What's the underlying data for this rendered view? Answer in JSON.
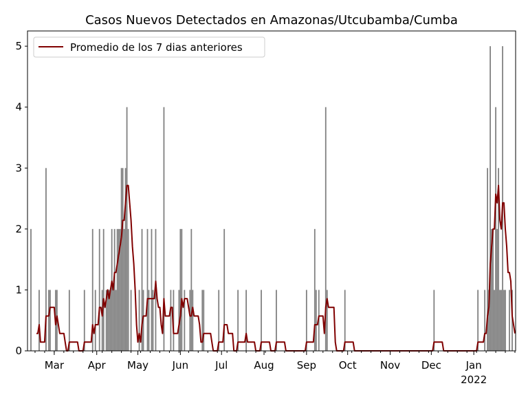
{
  "chart_data": {
    "type": "bar",
    "title": "Casos Nuevos Detectados en Amazonas/Utcubamba/Cumba",
    "xlabel": "",
    "ylabel": "",
    "ylim": [
      0,
      5.25
    ],
    "yticks": [
      "0",
      "1",
      "2",
      "3",
      "4",
      "5"
    ],
    "start_date": "2021-02-10",
    "num_days": 355,
    "x_unit": "days since start_date",
    "month_ticks": [
      {
        "day": 19,
        "label": "Mar"
      },
      {
        "day": 50,
        "label": "Apr"
      },
      {
        "day": 80,
        "label": "May"
      },
      {
        "day": 111,
        "label": "Jun"
      },
      {
        "day": 141,
        "label": "Jul"
      },
      {
        "day": 172,
        "label": "Aug"
      },
      {
        "day": 203,
        "label": "Sep"
      },
      {
        "day": 233,
        "label": "Oct"
      },
      {
        "day": 264,
        "label": "Nov"
      },
      {
        "day": 294,
        "label": "Dec"
      },
      {
        "day": 325,
        "label": "Jan",
        "sublabel": "2022"
      }
    ],
    "daily_cases": [
      [
        2,
        2
      ],
      [
        8,
        1
      ],
      [
        13,
        3
      ],
      [
        15,
        1
      ],
      [
        16,
        1
      ],
      [
        20,
        1
      ],
      [
        21,
        1
      ],
      [
        30,
        1
      ],
      [
        41,
        1
      ],
      [
        47,
        2
      ],
      [
        49,
        1
      ],
      [
        52,
        2
      ],
      [
        54,
        1
      ],
      [
        55,
        2
      ],
      [
        57,
        1
      ],
      [
        58,
        1
      ],
      [
        59,
        1
      ],
      [
        60,
        1
      ],
      [
        61,
        2
      ],
      [
        62,
        1
      ],
      [
        63,
        2
      ],
      [
        64,
        1
      ],
      [
        65,
        2
      ],
      [
        66,
        2
      ],
      [
        67,
        2
      ],
      [
        68,
        3
      ],
      [
        69,
        3
      ],
      [
        70,
        2
      ],
      [
        71,
        3
      ],
      [
        72,
        4
      ],
      [
        73,
        2
      ],
      [
        75,
        1
      ],
      [
        81,
        1
      ],
      [
        83,
        2
      ],
      [
        84,
        1
      ],
      [
        87,
        2
      ],
      [
        88,
        1
      ],
      [
        90,
        2
      ],
      [
        91,
        1
      ],
      [
        93,
        2
      ],
      [
        99,
        4
      ],
      [
        104,
        1
      ],
      [
        106,
        1
      ],
      [
        110,
        1
      ],
      [
        111,
        2
      ],
      [
        112,
        2
      ],
      [
        114,
        1
      ],
      [
        118,
        1
      ],
      [
        119,
        2
      ],
      [
        120,
        1
      ],
      [
        127,
        1
      ],
      [
        128,
        1
      ],
      [
        139,
        1
      ],
      [
        143,
        2
      ],
      [
        153,
        1
      ],
      [
        159,
        1
      ],
      [
        170,
        1
      ],
      [
        181,
        1
      ],
      [
        203,
        1
      ],
      [
        209,
        2
      ],
      [
        210,
        1
      ],
      [
        212,
        1
      ],
      [
        217,
        4
      ],
      [
        218,
        1
      ],
      [
        231,
        1
      ],
      [
        296,
        1
      ],
      [
        328,
        1
      ],
      [
        333,
        1
      ],
      [
        335,
        3
      ],
      [
        336,
        1
      ],
      [
        337,
        5
      ],
      [
        338,
        2
      ],
      [
        339,
        2
      ],
      [
        340,
        1
      ],
      [
        341,
        4
      ],
      [
        342,
        2
      ],
      [
        343,
        3
      ],
      [
        344,
        1
      ],
      [
        345,
        1
      ],
      [
        346,
        5
      ],
      [
        347,
        1
      ],
      [
        348,
        1
      ],
      [
        351,
        1
      ],
      [
        353,
        1
      ]
    ],
    "series": [
      {
        "name": "Promedio de los 7 dias anteriores",
        "kind": "rolling_mean_7",
        "color": "#800000"
      }
    ],
    "bar_color": "#808080",
    "legend_position": "top-left"
  }
}
